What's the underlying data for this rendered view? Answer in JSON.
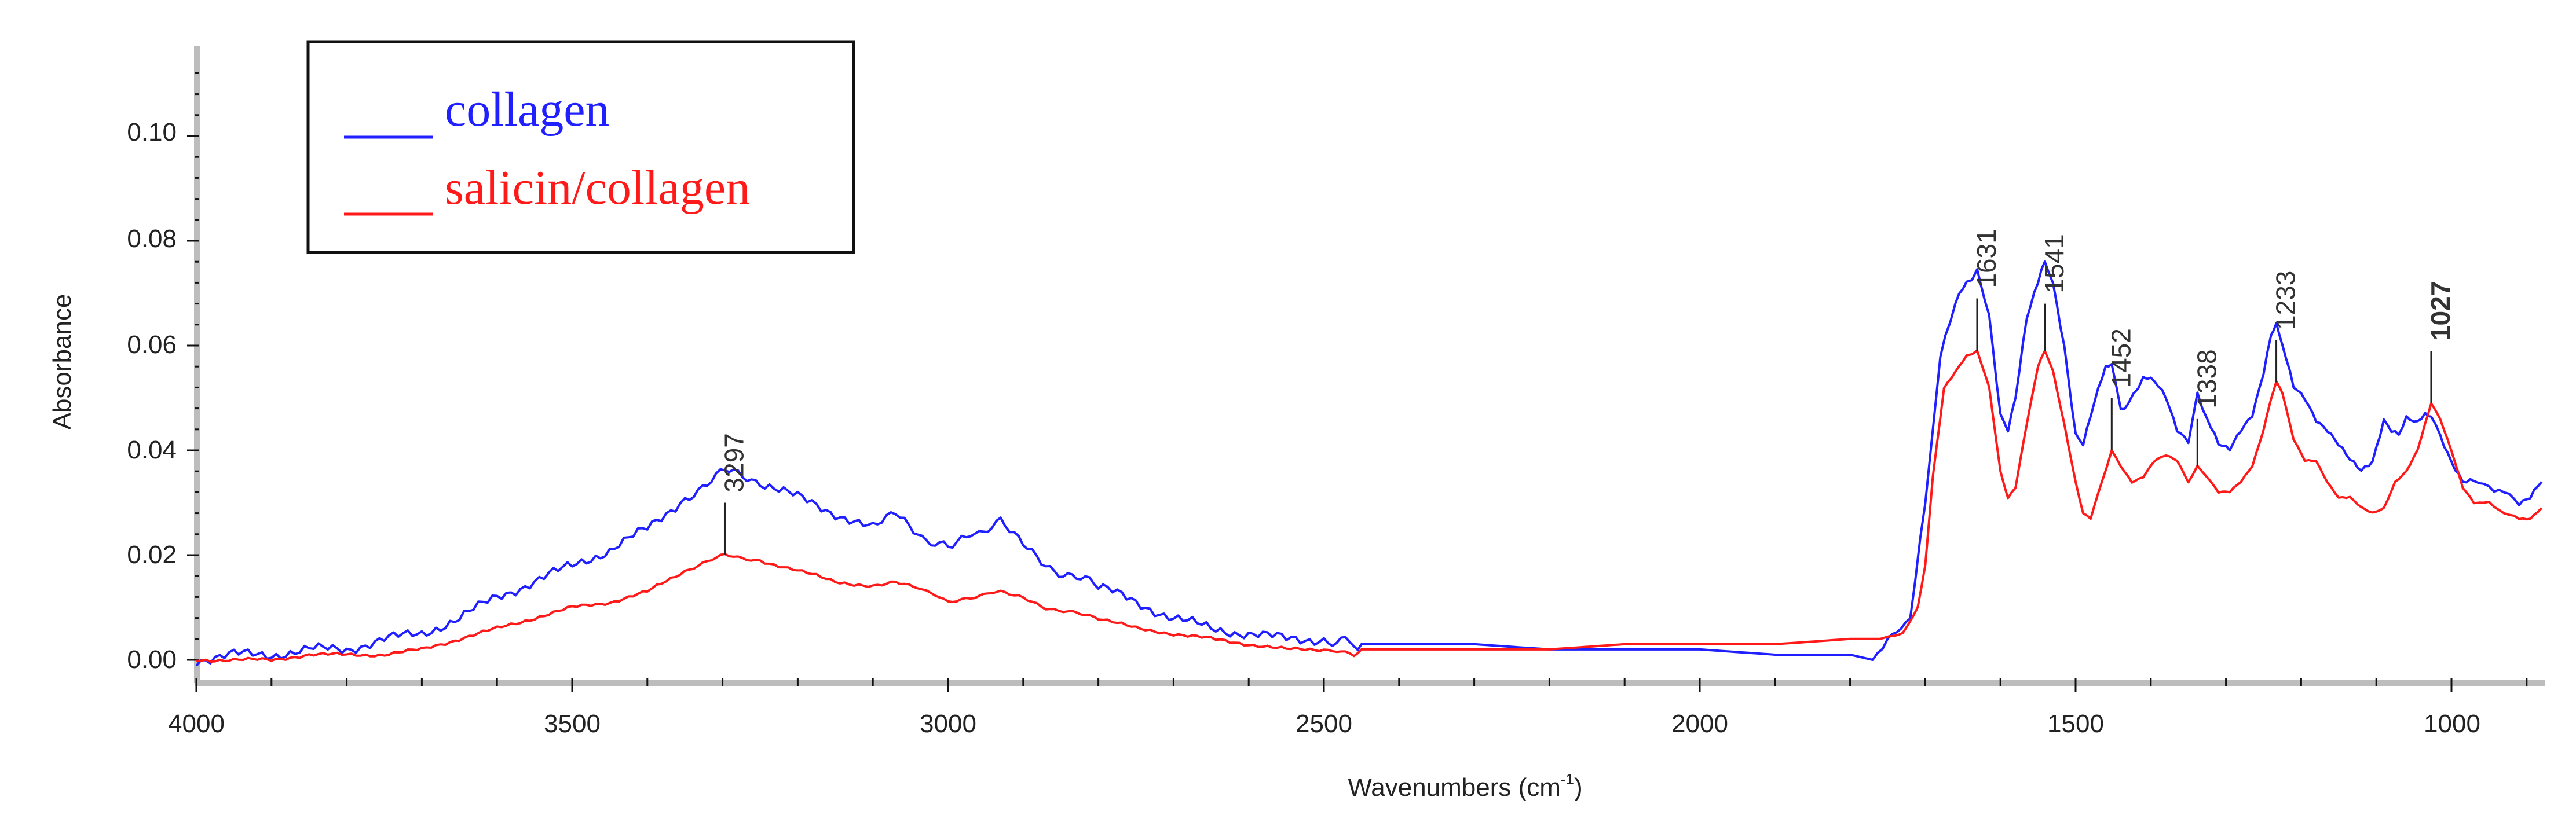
{
  "chart_data": {
    "type": "line",
    "title": "",
    "xlabel": "Wavenumbers (cm-1)",
    "xlabel_main": "Wavenumbers (cm",
    "xlabel_sup": "-1",
    "xlabel_close": ")",
    "ylabel": "Absorbance",
    "xlim": [
      4000,
      877
    ],
    "ylim": [
      -0.004,
      0.117
    ],
    "x_reversed": true,
    "grid": false,
    "legend_position": "upper-left",
    "x_ticks": [
      {
        "value": 4000,
        "label": "4000"
      },
      {
        "value": 3500,
        "label": "3500"
      },
      {
        "value": 3000,
        "label": "3000"
      },
      {
        "value": 2500,
        "label": "2500"
      },
      {
        "value": 2000,
        "label": "2000"
      },
      {
        "value": 1500,
        "label": "1500"
      },
      {
        "value": 1000,
        "label": "1000"
      }
    ],
    "y_ticks": [
      {
        "value": 0.0,
        "label": "0.00"
      },
      {
        "value": 0.02,
        "label": "0.02"
      },
      {
        "value": 0.04,
        "label": "0.04"
      },
      {
        "value": 0.06,
        "label": "0.06"
      },
      {
        "value": 0.08,
        "label": "0.08"
      },
      {
        "value": 0.1,
        "label": "0.10"
      }
    ],
    "series": [
      {
        "name": "collagen",
        "color": "#1f1fff",
        "x": [
          4000,
          3950,
          3900,
          3850,
          3800,
          3750,
          3700,
          3650,
          3600,
          3550,
          3500,
          3450,
          3400,
          3350,
          3297,
          3250,
          3200,
          3150,
          3100,
          3070,
          3040,
          3000,
          2970,
          2930,
          2900,
          2870,
          2800,
          2750,
          2700,
          2650,
          2600,
          2550,
          2500,
          2460,
          2450,
          2300,
          2200,
          2100,
          2000,
          1900,
          1800,
          1770,
          1750,
          1720,
          1700,
          1680,
          1660,
          1645,
          1631,
          1615,
          1600,
          1590,
          1580,
          1565,
          1550,
          1541,
          1530,
          1515,
          1500,
          1490,
          1475,
          1460,
          1452,
          1440,
          1430,
          1410,
          1395,
          1380,
          1365,
          1350,
          1338,
          1325,
          1310,
          1295,
          1280,
          1265,
          1250,
          1240,
          1233,
          1225,
          1210,
          1195,
          1180,
          1165,
          1150,
          1135,
          1120,
          1105,
          1090,
          1080,
          1070,
          1060,
          1045,
          1035,
          1027,
          1015,
          1000,
          985,
          970,
          950,
          930,
          910,
          895,
          880
        ],
        "y": [
          0.0,
          0.001,
          0.001,
          0.002,
          0.002,
          0.004,
          0.005,
          0.008,
          0.012,
          0.015,
          0.018,
          0.021,
          0.025,
          0.031,
          0.036,
          0.034,
          0.031,
          0.028,
          0.025,
          0.028,
          0.024,
          0.021,
          0.024,
          0.026,
          0.022,
          0.018,
          0.014,
          0.011,
          0.008,
          0.006,
          0.005,
          0.004,
          0.004,
          0.003,
          0.003,
          0.003,
          0.002,
          0.002,
          0.002,
          0.001,
          0.001,
          0.0,
          0.004,
          0.008,
          0.03,
          0.058,
          0.068,
          0.072,
          0.074,
          0.066,
          0.047,
          0.044,
          0.05,
          0.065,
          0.072,
          0.076,
          0.072,
          0.06,
          0.043,
          0.041,
          0.049,
          0.056,
          0.056,
          0.048,
          0.049,
          0.054,
          0.053,
          0.05,
          0.044,
          0.042,
          0.051,
          0.046,
          0.041,
          0.04,
          0.044,
          0.047,
          0.055,
          0.062,
          0.064,
          0.06,
          0.052,
          0.05,
          0.046,
          0.044,
          0.041,
          0.038,
          0.036,
          0.038,
          0.046,
          0.044,
          0.043,
          0.046,
          0.045,
          0.047,
          0.046,
          0.043,
          0.038,
          0.034,
          0.034,
          0.033,
          0.032,
          0.03,
          0.031,
          0.034
        ]
      },
      {
        "name": "salicin/collagen",
        "color": "#ff1a1a",
        "x": [
          4000,
          3950,
          3900,
          3850,
          3800,
          3750,
          3700,
          3650,
          3600,
          3550,
          3500,
          3450,
          3400,
          3350,
          3297,
          3250,
          3200,
          3150,
          3100,
          3070,
          3040,
          3000,
          2970,
          2930,
          2900,
          2870,
          2800,
          2750,
          2700,
          2650,
          2600,
          2550,
          2500,
          2460,
          2450,
          2300,
          2200,
          2100,
          2000,
          1900,
          1800,
          1760,
          1730,
          1710,
          1700,
          1690,
          1675,
          1660,
          1645,
          1631,
          1615,
          1600,
          1590,
          1580,
          1565,
          1550,
          1541,
          1530,
          1515,
          1500,
          1490,
          1480,
          1465,
          1452,
          1440,
          1425,
          1410,
          1395,
          1380,
          1365,
          1350,
          1338,
          1325,
          1310,
          1295,
          1280,
          1265,
          1250,
          1240,
          1233,
          1225,
          1210,
          1195,
          1180,
          1165,
          1150,
          1135,
          1120,
          1105,
          1090,
          1075,
          1060,
          1045,
          1035,
          1027,
          1015,
          1000,
          985,
          970,
          950,
          930,
          910,
          895,
          880
        ],
        "y": [
          0.0,
          0.0,
          0.0,
          0.001,
          0.001,
          0.001,
          0.002,
          0.004,
          0.006,
          0.008,
          0.01,
          0.011,
          0.013,
          0.017,
          0.02,
          0.019,
          0.017,
          0.015,
          0.014,
          0.015,
          0.014,
          0.011,
          0.012,
          0.013,
          0.012,
          0.01,
          0.008,
          0.006,
          0.005,
          0.004,
          0.003,
          0.002,
          0.002,
          0.001,
          0.002,
          0.002,
          0.002,
          0.003,
          0.003,
          0.003,
          0.004,
          0.004,
          0.005,
          0.01,
          0.018,
          0.035,
          0.052,
          0.055,
          0.058,
          0.059,
          0.052,
          0.036,
          0.031,
          0.033,
          0.045,
          0.056,
          0.059,
          0.055,
          0.045,
          0.034,
          0.028,
          0.027,
          0.034,
          0.04,
          0.037,
          0.034,
          0.035,
          0.038,
          0.039,
          0.038,
          0.034,
          0.037,
          0.035,
          0.032,
          0.032,
          0.034,
          0.037,
          0.044,
          0.05,
          0.053,
          0.051,
          0.042,
          0.038,
          0.038,
          0.034,
          0.031,
          0.031,
          0.029,
          0.028,
          0.029,
          0.034,
          0.036,
          0.04,
          0.045,
          0.049,
          0.046,
          0.04,
          0.033,
          0.03,
          0.03,
          0.028,
          0.027,
          0.027,
          0.029
        ]
      }
    ],
    "annotations": [
      {
        "label": "3297",
        "x": 3297,
        "y_line_top": 0.03,
        "y_line_bottom": 0.02,
        "bold": false
      },
      {
        "label": "1631",
        "x": 1631,
        "y_line_top": 0.069,
        "y_line_bottom": 0.059,
        "bold": false
      },
      {
        "label": "1541",
        "x": 1541,
        "y_line_top": 0.068,
        "y_line_bottom": 0.059,
        "bold": false
      },
      {
        "label": "1452",
        "x": 1452,
        "y_line_top": 0.05,
        "y_line_bottom": 0.04,
        "bold": false
      },
      {
        "label": "1338",
        "x": 1338,
        "y_line_top": 0.046,
        "y_line_bottom": 0.037,
        "bold": false
      },
      {
        "label": "1233",
        "x": 1233,
        "y_line_top": 0.061,
        "y_line_bottom": 0.053,
        "bold": false
      },
      {
        "label": "1027",
        "x": 1027,
        "y_line_top": 0.059,
        "y_line_bottom": 0.049,
        "bold": true
      }
    ],
    "legend": [
      {
        "label": "collagen",
        "color": "#1f1fff"
      },
      {
        "label": "salicin/collagen",
        "color": "#ff1a1a"
      }
    ]
  }
}
